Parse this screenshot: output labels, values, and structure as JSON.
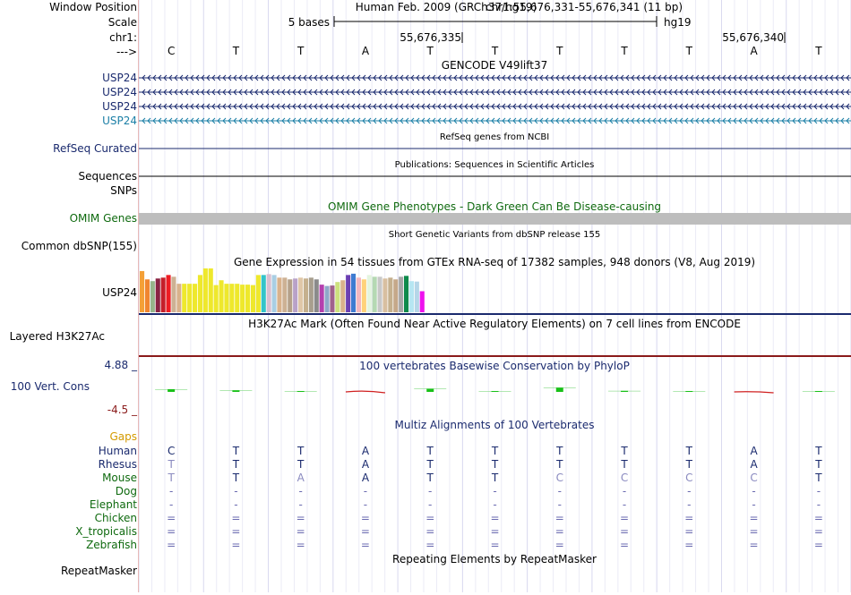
{
  "ruler": {
    "window_position_label": "Window Position",
    "scale_label": "Scale",
    "chrom_label": "chr1:",
    "arrow_label": "--->",
    "assembly_title": "Human Feb. 2009 (GRCh37/hg19)",
    "position_text": "chr1:55,676,331-55,676,341 (11 bp)",
    "scale_text": "5 bases",
    "assembly_short": "hg19",
    "coord_marks": [
      "55,676,335",
      "55,676,340"
    ],
    "bases": [
      "C",
      "T",
      "T",
      "A",
      "T",
      "T",
      "T",
      "T",
      "T",
      "A",
      "T"
    ]
  },
  "tracks": {
    "gencode": {
      "title": "GENCODE V49lift37",
      "genes": [
        {
          "name": "USP24",
          "color": "#1a2a6e"
        },
        {
          "name": "USP24",
          "color": "#1a2a6e"
        },
        {
          "name": "USP24",
          "color": "#1a2a6e"
        },
        {
          "name": "USP24",
          "color": "#1b7fa6"
        }
      ]
    },
    "refseq": {
      "title": "RefSeq genes from NCBI",
      "label": "RefSeq Curated"
    },
    "sequences": {
      "title": "Publications: Sequences in Scientific Articles",
      "label": "Sequences"
    },
    "snps": {
      "label": "SNPs"
    },
    "omim": {
      "title": "OMIM Gene Phenotypes - Dark Green Can Be Disease-causing",
      "label": "OMIM Genes"
    },
    "dbsnp": {
      "title": "Short Genetic Variants from dbSNP release 155",
      "label": "Common dbSNP(155)"
    },
    "gtex": {
      "title": "Gene Expression in 54 tissues from GTEx RNA-seq of 17382 samples, 948 donors (V8, Aug 2019)",
      "label": "USP24",
      "bars": [
        {
          "h": 0.94,
          "c": "#f4a037"
        },
        {
          "h": 0.75,
          "c": "#f08530"
        },
        {
          "h": 0.71,
          "c": "#96b58b"
        },
        {
          "h": 0.77,
          "c": "#8a2343"
        },
        {
          "h": 0.79,
          "c": "#c41f2a"
        },
        {
          "h": 0.85,
          "c": "#ee1c23"
        },
        {
          "h": 0.81,
          "c": "#cdb194"
        },
        {
          "h": 0.65,
          "c": "#d9b28c"
        },
        {
          "h": 0.65,
          "c": "#eee82c"
        },
        {
          "h": 0.65,
          "c": "#eee82c"
        },
        {
          "h": 0.65,
          "c": "#eee82c"
        },
        {
          "h": 0.85,
          "c": "#eee82c"
        },
        {
          "h": 1.0,
          "c": "#eee82c"
        },
        {
          "h": 1.0,
          "c": "#eee82c"
        },
        {
          "h": 0.62,
          "c": "#eee82c"
        },
        {
          "h": 0.73,
          "c": "#eee82c"
        },
        {
          "h": 0.65,
          "c": "#eee82c"
        },
        {
          "h": 0.65,
          "c": "#eee82c"
        },
        {
          "h": 0.65,
          "c": "#eee82c"
        },
        {
          "h": 0.63,
          "c": "#eee82c"
        },
        {
          "h": 0.63,
          "c": "#eee82c"
        },
        {
          "h": 0.62,
          "c": "#eee82c"
        },
        {
          "h": 0.85,
          "c": "#eee82c"
        },
        {
          "h": 0.85,
          "c": "#33c4c8"
        },
        {
          "h": 0.87,
          "c": "#d8bfd0"
        },
        {
          "h": 0.85,
          "c": "#a9cee3"
        },
        {
          "h": 0.79,
          "c": "#d9b28c"
        },
        {
          "h": 0.79,
          "c": "#cdb194"
        },
        {
          "h": 0.75,
          "c": "#b5a18a"
        },
        {
          "h": 0.77,
          "c": "#b9a2c8"
        },
        {
          "h": 0.79,
          "c": "#e0c7a8"
        },
        {
          "h": 0.77,
          "c": "#c5b08e"
        },
        {
          "h": 0.79,
          "c": "#a79e8e"
        },
        {
          "h": 0.75,
          "c": "#8a8a8a"
        },
        {
          "h": 0.63,
          "c": "#b43fae"
        },
        {
          "h": 0.6,
          "c": "#8fa7c8"
        },
        {
          "h": 0.61,
          "c": "#a0628d"
        },
        {
          "h": 0.69,
          "c": "#cde17e"
        },
        {
          "h": 0.73,
          "c": "#d9b28c"
        },
        {
          "h": 0.85,
          "c": "#6c3fb3"
        },
        {
          "h": 0.88,
          "c": "#3e7bd1"
        },
        {
          "h": 0.79,
          "c": "#f3b7c0"
        },
        {
          "h": 0.75,
          "c": "#ffd27a"
        },
        {
          "h": 0.85,
          "c": "#e4f5df"
        },
        {
          "h": 0.81,
          "c": "#b5d9b3"
        },
        {
          "h": 0.81,
          "c": "#c8c8c8"
        },
        {
          "h": 0.77,
          "c": "#d8bfa0"
        },
        {
          "h": 0.79,
          "c": "#c5b08e"
        },
        {
          "h": 0.75,
          "c": "#c5a889"
        },
        {
          "h": 0.81,
          "c": "#a7a7a7"
        },
        {
          "h": 0.83,
          "c": "#0e8a4b"
        },
        {
          "h": 0.71,
          "c": "#b6e6f2"
        },
        {
          "h": 0.7,
          "c": "#b5d6e8"
        },
        {
          "h": 0.48,
          "c": "#ee12ee"
        }
      ]
    },
    "h3k27ac": {
      "title": "H3K27Ac Mark (Often Found Near Active Regulatory Elements) on 7 cell lines from ENCODE",
      "label": "Layered H3K27Ac"
    },
    "phylop": {
      "title": "100 vertebrates Basewise Conservation by PhyloP",
      "label": "100 Vert. Cons",
      "max_label": "4.88 _",
      "min_label": "-4.5 _",
      "max_value": 4.88,
      "min_value": -4.5,
      "scores": [
        0.25,
        0.15,
        0.05,
        -0.7,
        0.3,
        0.05,
        0.4,
        0.1,
        0.0,
        -0.25,
        0.0
      ]
    },
    "multiz": {
      "title": "Multiz Alignments of 100 Vertebrates",
      "gaps_label": "Gaps",
      "species": [
        {
          "name": "Human",
          "row": [
            "C",
            "T",
            "T",
            "A",
            "T",
            "T",
            "T",
            "T",
            "T",
            "A",
            "T"
          ],
          "color": "#1a2a6e"
        },
        {
          "name": "Rhesus",
          "row": [
            "T",
            "T",
            "T",
            "A",
            "T",
            "T",
            "T",
            "T",
            "T",
            "A",
            "T"
          ],
          "color": "#1a2a6e"
        },
        {
          "name": "Mouse",
          "row": [
            "T",
            "T",
            "A",
            "A",
            "T",
            "T",
            "C",
            "C",
            "C",
            "C",
            "T"
          ],
          "color": "#0f6a0f"
        },
        {
          "name": "Dog",
          "row": [
            "-",
            "-",
            "-",
            "-",
            "-",
            "-",
            "-",
            "-",
            "-",
            "-",
            "-"
          ],
          "color": "#0f6a0f"
        },
        {
          "name": "Elephant",
          "row": [
            "-",
            "-",
            "-",
            "-",
            "-",
            "-",
            "-",
            "-",
            "-",
            "-",
            "-"
          ],
          "color": "#0f6a0f"
        },
        {
          "name": "Chicken",
          "row": [
            "=",
            "=",
            "=",
            "=",
            "=",
            "=",
            "=",
            "=",
            "=",
            "=",
            "="
          ],
          "color": "#0f6a0f"
        },
        {
          "name": "X_tropicalis",
          "row": [
            "=",
            "=",
            "=",
            "=",
            "=",
            "=",
            "=",
            "=",
            "=",
            "=",
            "="
          ],
          "color": "#0f6a0f"
        },
        {
          "name": "Zebrafish",
          "row": [
            "=",
            "=",
            "=",
            "=",
            "=",
            "=",
            "=",
            "=",
            "=",
            "=",
            "="
          ],
          "color": "#0f6a0f"
        }
      ],
      "faded": [
        [
          false,
          false,
          false,
          false,
          false,
          false,
          false,
          false,
          false,
          false,
          false
        ],
        [
          true,
          false,
          false,
          false,
          false,
          false,
          false,
          false,
          false,
          false,
          false
        ],
        [
          true,
          false,
          true,
          false,
          false,
          false,
          true,
          true,
          true,
          true,
          false
        ]
      ]
    },
    "repeatmasker": {
      "title": "Repeating Elements by RepeatMasker",
      "label": "RepeatMasker"
    }
  },
  "colors": {
    "navy": "#1a2a6e",
    "green": "#0f6a0f",
    "orange": "#d49a00",
    "darkred": "#8a1a1a",
    "omim_gray": "#bdbdbd"
  }
}
